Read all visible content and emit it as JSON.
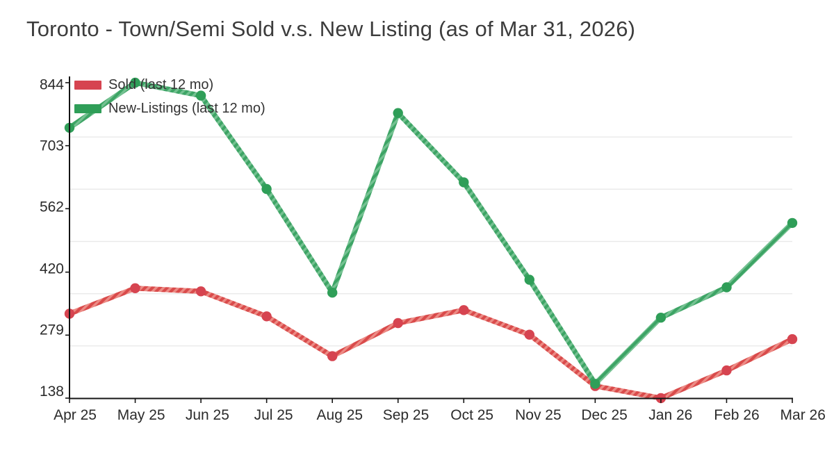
{
  "title": "Toronto - Town/Semi Sold v.s. New Listing (as of Mar 31, 2026)",
  "chart_data": {
    "type": "line",
    "title": "Toronto - Town/Semi Sold v.s. New Listing (as of Mar 31, 2026)",
    "categories": [
      "Apr 25",
      "May 25",
      "Jun 25",
      "Jul 25",
      "Aug 25",
      "Sep 25",
      "Oct 25",
      "Nov 25",
      "Dec 25",
      "Jan 26",
      "Feb 26",
      "Mar 26"
    ],
    "series": [
      {
        "name": "Sold (last 12 mo)",
        "values": [
          327,
          384,
          377,
          321,
          232,
          306,
          335,
          280,
          165,
          138,
          200,
          270
        ],
        "color": "#d94b4b",
        "color_light": "#ec8b85",
        "dot_color": "#d64450"
      },
      {
        "name": "New-Listings (last 12 mo)",
        "values": [
          743,
          844,
          815,
          606,
          374,
          776,
          621,
          403,
          170,
          318,
          386,
          530
        ],
        "color": "#3da465",
        "color_light": "#74c191",
        "dot_color": "#2f9e58"
      }
    ],
    "yticks": [
      138,
      279,
      420,
      562,
      703,
      844
    ],
    "ylim": [
      138,
      844
    ],
    "grid": true,
    "legend_position": "top-left",
    "axis_color": "#141414",
    "grid_color": "#e9e9e9",
    "tick_text_color": "#2b2b2b"
  }
}
